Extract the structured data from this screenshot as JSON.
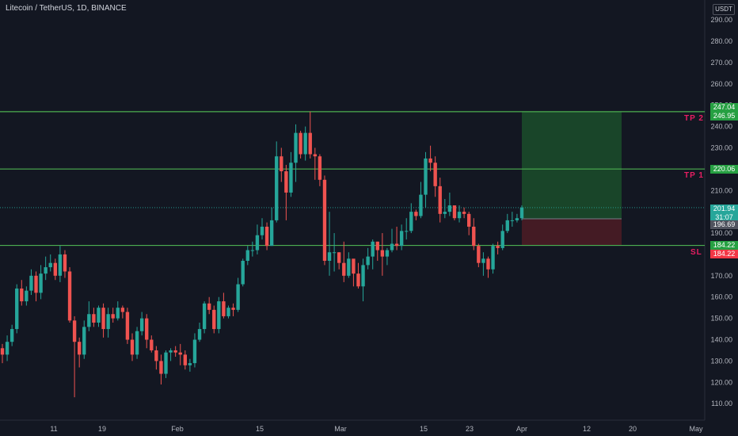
{
  "header": {
    "title": "Litecoin / TetherUS, 1D, BINANCE"
  },
  "axis": {
    "currency": "USDT"
  },
  "chart_data": {
    "type": "candlestick",
    "ylim": [
      105,
      296
    ],
    "yticks": [
      110,
      120,
      130,
      140,
      150,
      160,
      170,
      180,
      190,
      200,
      210,
      220,
      230,
      240,
      250,
      260,
      270,
      280,
      290
    ],
    "ytick_labels": [
      "110.00",
      "120.00",
      "130.00",
      "140.00",
      "150.00",
      "160.00",
      "170.00",
      "180.00",
      "190.00",
      "200.00",
      "210.00",
      "220.00",
      "230.00",
      "240.00",
      "250.00",
      "260.00",
      "270.00",
      "280.00",
      "290.00"
    ],
    "xticks": [
      "11",
      "19",
      "Feb",
      "15",
      "Mar",
      "15",
      "23",
      "Apr",
      "12",
      "20",
      "May"
    ],
    "candles": [
      [
        136,
        133,
        138,
        129
      ],
      [
        133,
        139,
        142,
        130
      ],
      [
        139,
        145,
        147,
        137
      ],
      [
        145,
        164,
        166,
        143
      ],
      [
        164,
        158,
        168,
        156
      ],
      [
        158,
        163,
        165,
        156
      ],
      [
        163,
        170,
        173,
        161
      ],
      [
        170,
        162,
        172,
        158
      ],
      [
        162,
        171,
        175,
        159
      ],
      [
        171,
        174,
        179,
        168
      ],
      [
        174,
        176,
        180,
        172
      ],
      [
        176,
        170,
        178,
        168
      ],
      [
        170,
        180,
        184,
        167
      ],
      [
        180,
        172,
        182,
        169
      ],
      [
        172,
        149,
        174,
        148
      ],
      [
        149,
        139,
        151,
        113
      ],
      [
        139,
        133,
        141,
        127
      ],
      [
        133,
        146,
        149,
        131
      ],
      [
        146,
        152,
        158,
        144
      ],
      [
        152,
        148,
        155,
        146
      ],
      [
        148,
        155,
        156,
        146
      ],
      [
        155,
        145,
        157,
        141
      ],
      [
        145,
        152,
        155,
        141
      ],
      [
        152,
        150,
        155,
        148
      ],
      [
        150,
        155,
        158,
        149
      ],
      [
        155,
        153,
        156,
        150
      ],
      [
        153,
        140,
        155,
        138
      ],
      [
        140,
        133,
        143,
        130
      ],
      [
        133,
        144,
        146,
        131
      ],
      [
        144,
        150,
        153,
        142
      ],
      [
        150,
        140,
        152,
        136
      ],
      [
        140,
        135,
        142,
        134
      ],
      [
        135,
        130,
        137,
        126
      ],
      [
        130,
        124,
        133,
        119
      ],
      [
        124,
        134,
        135,
        122
      ],
      [
        134,
        135,
        136,
        130
      ],
      [
        135,
        134,
        137,
        132
      ],
      [
        134,
        133,
        138,
        128
      ],
      [
        133,
        128,
        135,
        126
      ],
      [
        128,
        129,
        131,
        125
      ],
      [
        129,
        140,
        143,
        127
      ],
      [
        140,
        145,
        148,
        139
      ],
      [
        145,
        157,
        158,
        143
      ],
      [
        157,
        154,
        160,
        152
      ],
      [
        154,
        145,
        156,
        143
      ],
      [
        145,
        158,
        160,
        143
      ],
      [
        158,
        151,
        162,
        150
      ],
      [
        151,
        155,
        156,
        150
      ],
      [
        155,
        154,
        157,
        151
      ],
      [
        154,
        166,
        169,
        153
      ],
      [
        166,
        177,
        178,
        165
      ],
      [
        177,
        182,
        184,
        175
      ],
      [
        182,
        182,
        186,
        179
      ],
      [
        182,
        189,
        194,
        180
      ],
      [
        189,
        193,
        197,
        187
      ],
      [
        193,
        184,
        195,
        182
      ],
      [
        184,
        196,
        202,
        184
      ],
      [
        196,
        226,
        233,
        195
      ],
      [
        226,
        219,
        230,
        214
      ],
      [
        219,
        209,
        222,
        196
      ],
      [
        209,
        223,
        228,
        207
      ],
      [
        223,
        237,
        241,
        214
      ],
      [
        237,
        227,
        238,
        225
      ],
      [
        227,
        237,
        240,
        224
      ],
      [
        237,
        227,
        247,
        225
      ],
      [
        227,
        226,
        230,
        215
      ],
      [
        226,
        215,
        227,
        212
      ],
      [
        215,
        177,
        217,
        175
      ],
      [
        177,
        181,
        200,
        170
      ],
      [
        181,
        181,
        190,
        172
      ],
      [
        181,
        176,
        181,
        173
      ],
      [
        176,
        170,
        186,
        167
      ],
      [
        170,
        178,
        181,
        169
      ],
      [
        178,
        171,
        175,
        165
      ],
      [
        171,
        165,
        176,
        164
      ],
      [
        165,
        175,
        178,
        158
      ],
      [
        175,
        179,
        183,
        173
      ],
      [
        179,
        186,
        187,
        173
      ],
      [
        186,
        182,
        186,
        177
      ],
      [
        182,
        179,
        190,
        170
      ],
      [
        179,
        182,
        183,
        175
      ],
      [
        182,
        185,
        192,
        181
      ],
      [
        185,
        184,
        193,
        182
      ],
      [
        184,
        191,
        194,
        182
      ],
      [
        191,
        191,
        197,
        187
      ],
      [
        191,
        200,
        204,
        190
      ],
      [
        200,
        198,
        201,
        196
      ],
      [
        198,
        208,
        214,
        197
      ],
      [
        208,
        225,
        228,
        202
      ],
      [
        225,
        223,
        231,
        219
      ],
      [
        223,
        212,
        226,
        207
      ],
      [
        212,
        199,
        216,
        195
      ],
      [
        199,
        200,
        206,
        197
      ],
      [
        200,
        203,
        209,
        198
      ],
      [
        203,
        197,
        201,
        196
      ],
      [
        197,
        200,
        203,
        195
      ],
      [
        200,
        199,
        202,
        197
      ],
      [
        199,
        193,
        200,
        189
      ],
      [
        193,
        184,
        197,
        182
      ],
      [
        184,
        176,
        185,
        174
      ],
      [
        176,
        178,
        181,
        170
      ],
      [
        178,
        173,
        179,
        169
      ],
      [
        173,
        184,
        185,
        171
      ],
      [
        184,
        183,
        186,
        180
      ],
      [
        183,
        191,
        194,
        182
      ],
      [
        191,
        196,
        199,
        190
      ],
      [
        196,
        196,
        200,
        193
      ],
      [
        196,
        197,
        199,
        195
      ],
      [
        197,
        202,
        203,
        196
      ]
    ],
    "levels": [
      {
        "name": "TP 2",
        "value": 246.95,
        "label": "246.95"
      },
      {
        "name": "TP 1",
        "value": 220.06,
        "label": "220.06"
      },
      {
        "name": "SL",
        "value": 184.22,
        "label": "184.22"
      }
    ],
    "position": {
      "entry": 196.69,
      "target": 247.04,
      "stop": 184.22
    },
    "last_price": 201.94,
    "countdown": "31:07",
    "badges": [
      {
        "label": "247.04",
        "color": "#26a042"
      },
      {
        "label": "246.95",
        "color": "#26a042"
      },
      {
        "label": "220.06",
        "color": "#26a042"
      },
      {
        "label": "201.94",
        "color": "#26a69a"
      },
      {
        "label": "31:07",
        "color": "#26a69a"
      },
      {
        "label": "196.69",
        "color": "#50535e"
      },
      {
        "label": "184.22",
        "color": "#26a042"
      },
      {
        "label": "184.22",
        "color": "#f23645"
      }
    ],
    "colors": {
      "up": "#26a69a",
      "down": "#ef5350",
      "level": "#4caf50",
      "label": "#e91e63",
      "target_zone": "#1b4d2a",
      "stop_zone": "#4a1c25"
    }
  }
}
